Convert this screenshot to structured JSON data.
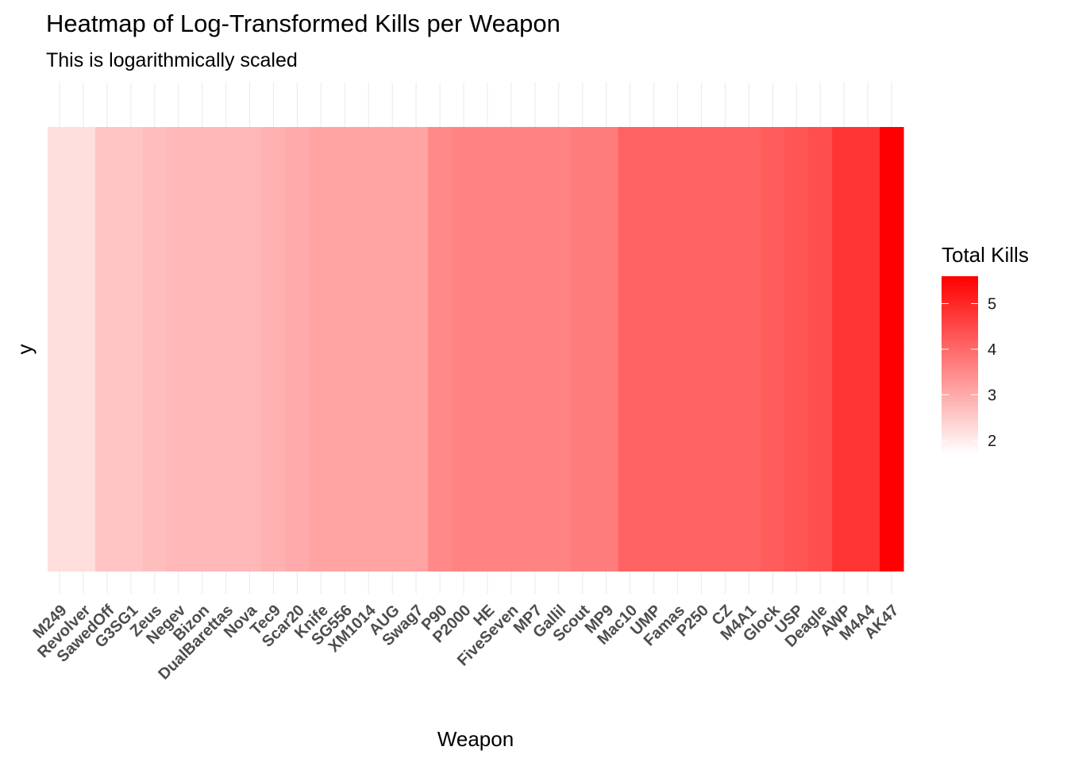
{
  "chart_data": {
    "type": "heatmap",
    "title": "Heatmap of Log-Transformed Kills per Weapon",
    "subtitle": "This is logarithmically scaled",
    "xlabel": "Weapon",
    "ylabel": "y",
    "categories": [
      "M249",
      "Revolver",
      "SawedOff",
      "G3SG1",
      "Zeus",
      "Negev",
      "Bizon",
      "DualBarettas",
      "Nova",
      "Tec9",
      "Scar20",
      "Knife",
      "SG556",
      "XM1014",
      "AUG",
      "Swag7",
      "P90",
      "P2000",
      "HE",
      "FiveSeven",
      "MP7",
      "Gallil",
      "Scout",
      "MP9",
      "Mac10",
      "UMP",
      "Famas",
      "P250",
      "CZ",
      "M4A1",
      "Glock",
      "USP",
      "Deagle",
      "AWP",
      "M4A4",
      "AK47"
    ],
    "values": [
      2.2,
      2.2,
      2.6,
      2.6,
      2.7,
      2.8,
      2.8,
      2.8,
      2.8,
      2.9,
      3.0,
      3.1,
      3.1,
      3.1,
      3.1,
      3.1,
      3.5,
      3.6,
      3.6,
      3.6,
      3.6,
      3.6,
      3.7,
      3.7,
      4.1,
      4.1,
      4.1,
      4.1,
      4.1,
      4.1,
      4.2,
      4.3,
      4.4,
      4.8,
      4.8,
      5.6
    ],
    "legend": {
      "title": "Total Kills",
      "position": "right",
      "breaks": [
        2,
        3,
        4,
        5
      ],
      "range": [
        1.7,
        5.6
      ],
      "low_color": "#ffffff",
      "high_color": "#ff0000"
    },
    "grid": true
  }
}
